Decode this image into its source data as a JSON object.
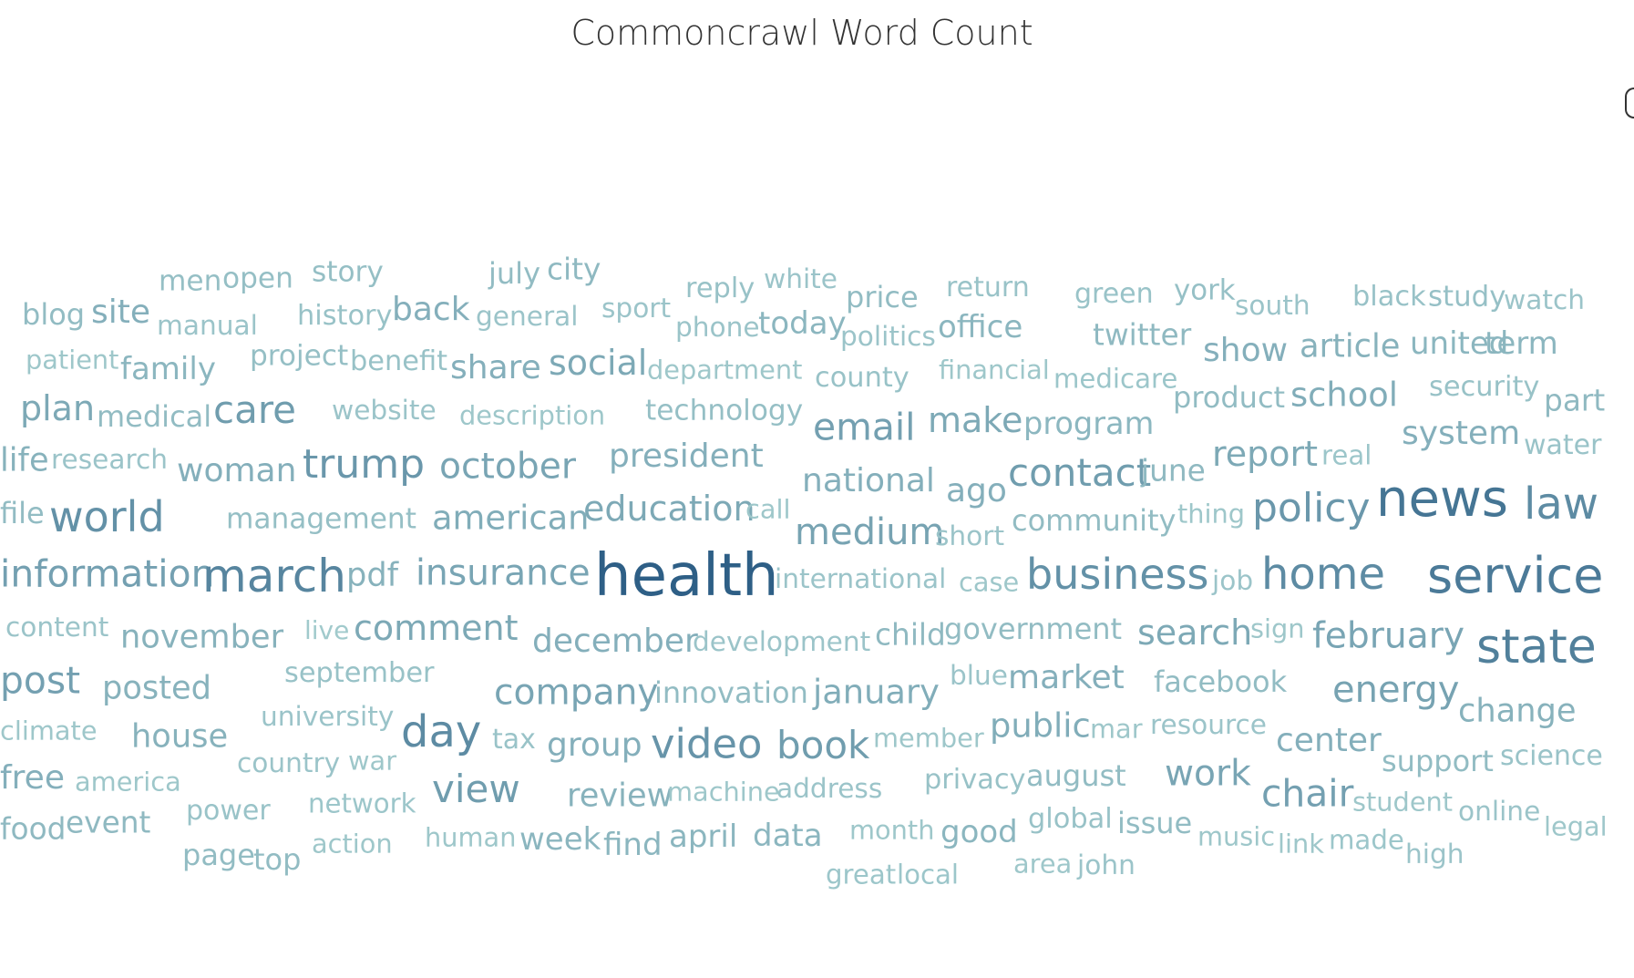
{
  "chart_data": {
    "type": "wordcloud",
    "title": "Commoncrawl Word Count",
    "color_scale": [
      "#b4dcd8",
      "#2e5f86"
    ],
    "words": [
      {
        "text": "men",
        "weight": 0.18
      },
      {
        "text": "open",
        "weight": 0.18
      },
      {
        "text": "story",
        "weight": 0.18
      },
      {
        "text": "july",
        "weight": 0.2
      },
      {
        "text": "city",
        "weight": 0.22
      },
      {
        "text": "reply",
        "weight": 0.16
      },
      {
        "text": "white",
        "weight": 0.14
      },
      {
        "text": "price",
        "weight": 0.2
      },
      {
        "text": "return",
        "weight": 0.15
      },
      {
        "text": "green",
        "weight": 0.15
      },
      {
        "text": "york",
        "weight": 0.17
      },
      {
        "text": "south",
        "weight": 0.14
      },
      {
        "text": "black",
        "weight": 0.16
      },
      {
        "text": "study",
        "weight": 0.17
      },
      {
        "text": "watch",
        "weight": 0.14
      },
      {
        "text": "blog",
        "weight": 0.2
      },
      {
        "text": "site",
        "weight": 0.3
      },
      {
        "text": "manual",
        "weight": 0.14
      },
      {
        "text": "history",
        "weight": 0.16
      },
      {
        "text": "back",
        "weight": 0.3
      },
      {
        "text": "general",
        "weight": 0.14
      },
      {
        "text": "sport",
        "weight": 0.14
      },
      {
        "text": "phone",
        "weight": 0.14
      },
      {
        "text": "today",
        "weight": 0.25
      },
      {
        "text": "politics",
        "weight": 0.14
      },
      {
        "text": "office",
        "weight": 0.25
      },
      {
        "text": "twitter",
        "weight": 0.22
      },
      {
        "text": "show",
        "weight": 0.3
      },
      {
        "text": "article",
        "weight": 0.28
      },
      {
        "text": "united",
        "weight": 0.25
      },
      {
        "text": "term",
        "weight": 0.25
      },
      {
        "text": "patient",
        "weight": 0.12
      },
      {
        "text": "family",
        "weight": 0.25
      },
      {
        "text": "project",
        "weight": 0.18
      },
      {
        "text": "benefit",
        "weight": 0.16
      },
      {
        "text": "share",
        "weight": 0.3
      },
      {
        "text": "social",
        "weight": 0.35
      },
      {
        "text": "department",
        "weight": 0.12
      },
      {
        "text": "county",
        "weight": 0.16
      },
      {
        "text": "financial",
        "weight": 0.12
      },
      {
        "text": "medicare",
        "weight": 0.13
      },
      {
        "text": "product",
        "weight": 0.2
      },
      {
        "text": "school",
        "weight": 0.32
      },
      {
        "text": "security",
        "weight": 0.16
      },
      {
        "text": "part",
        "weight": 0.22
      },
      {
        "text": "plan",
        "weight": 0.35
      },
      {
        "text": "medical",
        "weight": 0.2
      },
      {
        "text": "care",
        "weight": 0.45
      },
      {
        "text": "website",
        "weight": 0.14
      },
      {
        "text": "description",
        "weight": 0.12
      },
      {
        "text": "technology",
        "weight": 0.18
      },
      {
        "text": "email",
        "weight": 0.42
      },
      {
        "text": "make",
        "weight": 0.35
      },
      {
        "text": "program",
        "weight": 0.24
      },
      {
        "text": "system",
        "weight": 0.3
      },
      {
        "text": "water",
        "weight": 0.15
      },
      {
        "text": "life",
        "weight": 0.28
      },
      {
        "text": "research",
        "weight": 0.14
      },
      {
        "text": "woman",
        "weight": 0.3
      },
      {
        "text": "trump",
        "weight": 0.5
      },
      {
        "text": "october",
        "weight": 0.38
      },
      {
        "text": "president",
        "weight": 0.3
      },
      {
        "text": "national",
        "weight": 0.3
      },
      {
        "text": "ago",
        "weight": 0.3
      },
      {
        "text": "contact",
        "weight": 0.45
      },
      {
        "text": "june",
        "weight": 0.22
      },
      {
        "text": "report",
        "weight": 0.35
      },
      {
        "text": "real",
        "weight": 0.13
      },
      {
        "text": "news",
        "weight": 0.8
      },
      {
        "text": "law",
        "weight": 0.6
      },
      {
        "text": "file",
        "weight": 0.2
      },
      {
        "text": "world",
        "weight": 0.55
      },
      {
        "text": "management",
        "weight": 0.18
      },
      {
        "text": "american",
        "weight": 0.32
      },
      {
        "text": "education",
        "weight": 0.35
      },
      {
        "text": "call",
        "weight": 0.12
      },
      {
        "text": "medium",
        "weight": 0.4
      },
      {
        "text": "short",
        "weight": 0.14
      },
      {
        "text": "community",
        "weight": 0.2
      },
      {
        "text": "thing",
        "weight": 0.12
      },
      {
        "text": "policy",
        "weight": 0.5
      },
      {
        "text": "information",
        "weight": 0.42
      },
      {
        "text": "march",
        "weight": 0.65
      },
      {
        "text": "pdf",
        "weight": 0.28
      },
      {
        "text": "insurance",
        "weight": 0.38
      },
      {
        "text": "health",
        "weight": 1.0
      },
      {
        "text": "international",
        "weight": 0.14
      },
      {
        "text": "case",
        "weight": 0.12
      },
      {
        "text": "business",
        "weight": 0.55
      },
      {
        "text": "job",
        "weight": 0.14
      },
      {
        "text": "home",
        "weight": 0.6
      },
      {
        "text": "service",
        "weight": 0.75
      },
      {
        "text": "content",
        "weight": 0.14
      },
      {
        "text": "november",
        "weight": 0.28
      },
      {
        "text": "live",
        "weight": 0.1
      },
      {
        "text": "comment",
        "weight": 0.35
      },
      {
        "text": "december",
        "weight": 0.3
      },
      {
        "text": "development",
        "weight": 0.14
      },
      {
        "text": "child",
        "weight": 0.22
      },
      {
        "text": "government",
        "weight": 0.2
      },
      {
        "text": "search",
        "weight": 0.35
      },
      {
        "text": "sign",
        "weight": 0.12
      },
      {
        "text": "february",
        "weight": 0.38
      },
      {
        "text": "state",
        "weight": 0.7
      },
      {
        "text": "post",
        "weight": 0.42
      },
      {
        "text": "posted",
        "weight": 0.28
      },
      {
        "text": "september",
        "weight": 0.16
      },
      {
        "text": "company",
        "weight": 0.38
      },
      {
        "text": "innovation",
        "weight": 0.2
      },
      {
        "text": "january",
        "weight": 0.32
      },
      {
        "text": "blue",
        "weight": 0.14
      },
      {
        "text": "market",
        "weight": 0.3
      },
      {
        "text": "facebook",
        "weight": 0.2
      },
      {
        "text": "energy",
        "weight": 0.4
      },
      {
        "text": "change",
        "weight": 0.28
      },
      {
        "text": "climate",
        "weight": 0.12
      },
      {
        "text": "house",
        "weight": 0.28
      },
      {
        "text": "university",
        "weight": 0.14
      },
      {
        "text": "day",
        "weight": 0.6
      },
      {
        "text": "tax",
        "weight": 0.15
      },
      {
        "text": "group",
        "weight": 0.3
      },
      {
        "text": "video",
        "weight": 0.52
      },
      {
        "text": "book",
        "weight": 0.45
      },
      {
        "text": "member",
        "weight": 0.12
      },
      {
        "text": "public",
        "weight": 0.32
      },
      {
        "text": "mar",
        "weight": 0.12
      },
      {
        "text": "resource",
        "weight": 0.14
      },
      {
        "text": "center",
        "weight": 0.3
      },
      {
        "text": "support",
        "weight": 0.2
      },
      {
        "text": "science",
        "weight": 0.15
      },
      {
        "text": "free",
        "weight": 0.3
      },
      {
        "text": "america",
        "weight": 0.12
      },
      {
        "text": "country",
        "weight": 0.14
      },
      {
        "text": "war",
        "weight": 0.12
      },
      {
        "text": "view",
        "weight": 0.45
      },
      {
        "text": "review",
        "weight": 0.28
      },
      {
        "text": "machine",
        "weight": 0.12
      },
      {
        "text": "address",
        "weight": 0.14
      },
      {
        "text": "privacy",
        "weight": 0.16
      },
      {
        "text": "august",
        "weight": 0.2
      },
      {
        "text": "work",
        "weight": 0.38
      },
      {
        "text": "chair",
        "weight": 0.42
      },
      {
        "text": "student",
        "weight": 0.12
      },
      {
        "text": "online",
        "weight": 0.14
      },
      {
        "text": "legal",
        "weight": 0.12
      },
      {
        "text": "food",
        "weight": 0.22
      },
      {
        "text": "event",
        "weight": 0.22
      },
      {
        "text": "power",
        "weight": 0.15
      },
      {
        "text": "network",
        "weight": 0.13
      },
      {
        "text": "human",
        "weight": 0.12
      },
      {
        "text": "week",
        "weight": 0.25
      },
      {
        "text": "find",
        "weight": 0.25
      },
      {
        "text": "april",
        "weight": 0.25
      },
      {
        "text": "data",
        "weight": 0.25
      },
      {
        "text": "month",
        "weight": 0.12
      },
      {
        "text": "good",
        "weight": 0.25
      },
      {
        "text": "global",
        "weight": 0.16
      },
      {
        "text": "issue",
        "weight": 0.2
      },
      {
        "text": "music",
        "weight": 0.12
      },
      {
        "text": "link",
        "weight": 0.12
      },
      {
        "text": "made",
        "weight": 0.13
      },
      {
        "text": "page",
        "weight": 0.2
      },
      {
        "text": "top",
        "weight": 0.2
      },
      {
        "text": "action",
        "weight": 0.12
      },
      {
        "text": "high",
        "weight": 0.14
      },
      {
        "text": "great",
        "weight": 0.13
      },
      {
        "text": "local",
        "weight": 0.13
      },
      {
        "text": "area",
        "weight": 0.12
      },
      {
        "text": "john",
        "weight": 0.14
      }
    ]
  }
}
